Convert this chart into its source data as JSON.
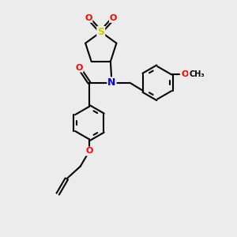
{
  "background_color": "#ececec",
  "bond_color": "#000000",
  "bond_width": 1.5,
  "atom_colors": {
    "N": "#0000ff",
    "O": "#ff0000",
    "S": "#cccc00",
    "C": "#000000"
  },
  "figsize": [
    3.0,
    3.0
  ],
  "dpi": 100
}
